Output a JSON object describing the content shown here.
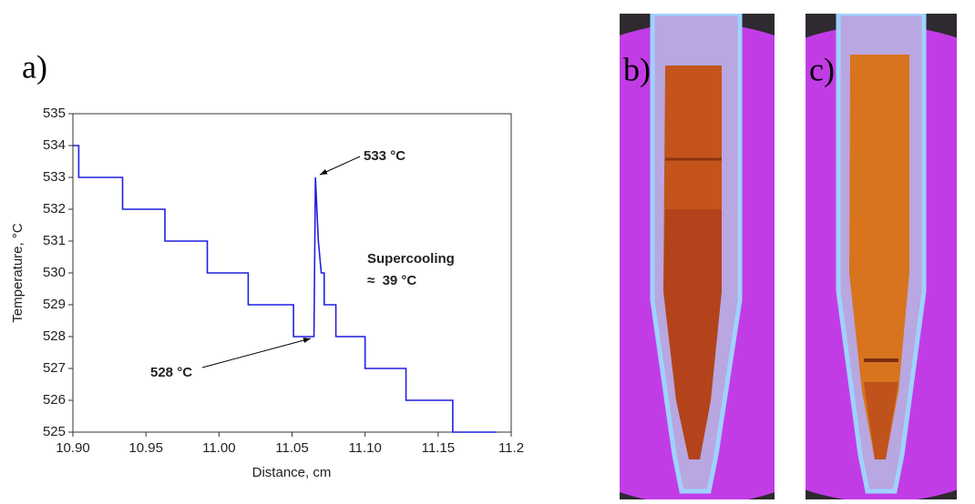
{
  "panel_labels": [
    "a)",
    "b)",
    "c)"
  ],
  "chart_data": {
    "type": "line",
    "x_label": "Distance, cm",
    "y_label": "Temperature, °C",
    "x": [
      10.9,
      10.904,
      10.904,
      10.934,
      10.934,
      10.963,
      10.963,
      10.992,
      10.992,
      11.02,
      11.02,
      11.051,
      11.051,
      11.065,
      11.066,
      11.068,
      11.07,
      11.072,
      11.072,
      11.08,
      11.08,
      11.1,
      11.1,
      11.128,
      11.128,
      11.16,
      11.16,
      11.19
    ],
    "values": [
      534,
      534,
      533,
      533,
      532,
      532,
      531,
      531,
      530,
      530,
      529,
      529,
      528,
      528,
      533,
      531,
      530,
      530,
      529,
      529,
      528,
      528,
      527,
      527,
      526,
      526,
      525,
      525
    ],
    "color": "#1f1fe0",
    "xlim": [
      10.9,
      11.2
    ],
    "ylim": [
      525,
      535
    ],
    "xticks": [
      {
        "value": 10.9,
        "label": "10.90"
      },
      10.95,
      {
        "value": 11.0,
        "label": "11.00"
      },
      11.05,
      {
        "value": 11.1,
        "label": "11.10"
      },
      11.15,
      11.2
    ],
    "yticks": [
      525,
      526,
      527,
      528,
      529,
      530,
      531,
      532,
      533,
      534,
      535
    ],
    "annotations": [
      "533 °C",
      "528 °C",
      "Supercooling",
      "≈  39 °C"
    ]
  }
}
